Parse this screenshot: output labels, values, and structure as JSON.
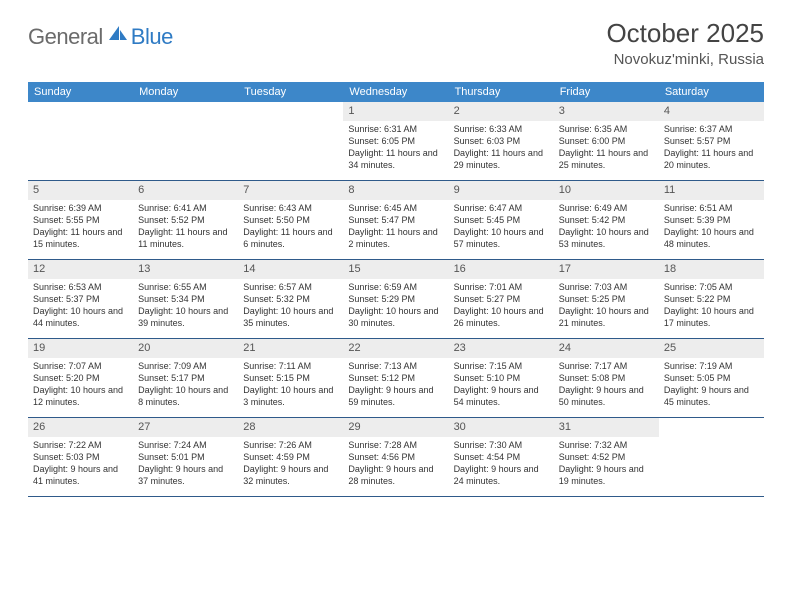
{
  "brand": {
    "part1": "General",
    "part2": "Blue"
  },
  "title": "October 2025",
  "location": "Novokuz'minki, Russia",
  "header_bg": "#3d87c9",
  "header_fg": "#ffffff",
  "row_border": "#2f5a8a",
  "daynum_bg": "#ededed",
  "day_names": [
    "Sunday",
    "Monday",
    "Tuesday",
    "Wednesday",
    "Thursday",
    "Friday",
    "Saturday"
  ],
  "weeks": [
    [
      {
        "n": "",
        "sr": "",
        "ss": "",
        "dl": ""
      },
      {
        "n": "",
        "sr": "",
        "ss": "",
        "dl": ""
      },
      {
        "n": "",
        "sr": "",
        "ss": "",
        "dl": ""
      },
      {
        "n": "1",
        "sr": "Sunrise: 6:31 AM",
        "ss": "Sunset: 6:05 PM",
        "dl": "Daylight: 11 hours and 34 minutes."
      },
      {
        "n": "2",
        "sr": "Sunrise: 6:33 AM",
        "ss": "Sunset: 6:03 PM",
        "dl": "Daylight: 11 hours and 29 minutes."
      },
      {
        "n": "3",
        "sr": "Sunrise: 6:35 AM",
        "ss": "Sunset: 6:00 PM",
        "dl": "Daylight: 11 hours and 25 minutes."
      },
      {
        "n": "4",
        "sr": "Sunrise: 6:37 AM",
        "ss": "Sunset: 5:57 PM",
        "dl": "Daylight: 11 hours and 20 minutes."
      }
    ],
    [
      {
        "n": "5",
        "sr": "Sunrise: 6:39 AM",
        "ss": "Sunset: 5:55 PM",
        "dl": "Daylight: 11 hours and 15 minutes."
      },
      {
        "n": "6",
        "sr": "Sunrise: 6:41 AM",
        "ss": "Sunset: 5:52 PM",
        "dl": "Daylight: 11 hours and 11 minutes."
      },
      {
        "n": "7",
        "sr": "Sunrise: 6:43 AM",
        "ss": "Sunset: 5:50 PM",
        "dl": "Daylight: 11 hours and 6 minutes."
      },
      {
        "n": "8",
        "sr": "Sunrise: 6:45 AM",
        "ss": "Sunset: 5:47 PM",
        "dl": "Daylight: 11 hours and 2 minutes."
      },
      {
        "n": "9",
        "sr": "Sunrise: 6:47 AM",
        "ss": "Sunset: 5:45 PM",
        "dl": "Daylight: 10 hours and 57 minutes."
      },
      {
        "n": "10",
        "sr": "Sunrise: 6:49 AM",
        "ss": "Sunset: 5:42 PM",
        "dl": "Daylight: 10 hours and 53 minutes."
      },
      {
        "n": "11",
        "sr": "Sunrise: 6:51 AM",
        "ss": "Sunset: 5:39 PM",
        "dl": "Daylight: 10 hours and 48 minutes."
      }
    ],
    [
      {
        "n": "12",
        "sr": "Sunrise: 6:53 AM",
        "ss": "Sunset: 5:37 PM",
        "dl": "Daylight: 10 hours and 44 minutes."
      },
      {
        "n": "13",
        "sr": "Sunrise: 6:55 AM",
        "ss": "Sunset: 5:34 PM",
        "dl": "Daylight: 10 hours and 39 minutes."
      },
      {
        "n": "14",
        "sr": "Sunrise: 6:57 AM",
        "ss": "Sunset: 5:32 PM",
        "dl": "Daylight: 10 hours and 35 minutes."
      },
      {
        "n": "15",
        "sr": "Sunrise: 6:59 AM",
        "ss": "Sunset: 5:29 PM",
        "dl": "Daylight: 10 hours and 30 minutes."
      },
      {
        "n": "16",
        "sr": "Sunrise: 7:01 AM",
        "ss": "Sunset: 5:27 PM",
        "dl": "Daylight: 10 hours and 26 minutes."
      },
      {
        "n": "17",
        "sr": "Sunrise: 7:03 AM",
        "ss": "Sunset: 5:25 PM",
        "dl": "Daylight: 10 hours and 21 minutes."
      },
      {
        "n": "18",
        "sr": "Sunrise: 7:05 AM",
        "ss": "Sunset: 5:22 PM",
        "dl": "Daylight: 10 hours and 17 minutes."
      }
    ],
    [
      {
        "n": "19",
        "sr": "Sunrise: 7:07 AM",
        "ss": "Sunset: 5:20 PM",
        "dl": "Daylight: 10 hours and 12 minutes."
      },
      {
        "n": "20",
        "sr": "Sunrise: 7:09 AM",
        "ss": "Sunset: 5:17 PM",
        "dl": "Daylight: 10 hours and 8 minutes."
      },
      {
        "n": "21",
        "sr": "Sunrise: 7:11 AM",
        "ss": "Sunset: 5:15 PM",
        "dl": "Daylight: 10 hours and 3 minutes."
      },
      {
        "n": "22",
        "sr": "Sunrise: 7:13 AM",
        "ss": "Sunset: 5:12 PM",
        "dl": "Daylight: 9 hours and 59 minutes."
      },
      {
        "n": "23",
        "sr": "Sunrise: 7:15 AM",
        "ss": "Sunset: 5:10 PM",
        "dl": "Daylight: 9 hours and 54 minutes."
      },
      {
        "n": "24",
        "sr": "Sunrise: 7:17 AM",
        "ss": "Sunset: 5:08 PM",
        "dl": "Daylight: 9 hours and 50 minutes."
      },
      {
        "n": "25",
        "sr": "Sunrise: 7:19 AM",
        "ss": "Sunset: 5:05 PM",
        "dl": "Daylight: 9 hours and 45 minutes."
      }
    ],
    [
      {
        "n": "26",
        "sr": "Sunrise: 7:22 AM",
        "ss": "Sunset: 5:03 PM",
        "dl": "Daylight: 9 hours and 41 minutes."
      },
      {
        "n": "27",
        "sr": "Sunrise: 7:24 AM",
        "ss": "Sunset: 5:01 PM",
        "dl": "Daylight: 9 hours and 37 minutes."
      },
      {
        "n": "28",
        "sr": "Sunrise: 7:26 AM",
        "ss": "Sunset: 4:59 PM",
        "dl": "Daylight: 9 hours and 32 minutes."
      },
      {
        "n": "29",
        "sr": "Sunrise: 7:28 AM",
        "ss": "Sunset: 4:56 PM",
        "dl": "Daylight: 9 hours and 28 minutes."
      },
      {
        "n": "30",
        "sr": "Sunrise: 7:30 AM",
        "ss": "Sunset: 4:54 PM",
        "dl": "Daylight: 9 hours and 24 minutes."
      },
      {
        "n": "31",
        "sr": "Sunrise: 7:32 AM",
        "ss": "Sunset: 4:52 PM",
        "dl": "Daylight: 9 hours and 19 minutes."
      },
      {
        "n": "",
        "sr": "",
        "ss": "",
        "dl": ""
      }
    ]
  ]
}
